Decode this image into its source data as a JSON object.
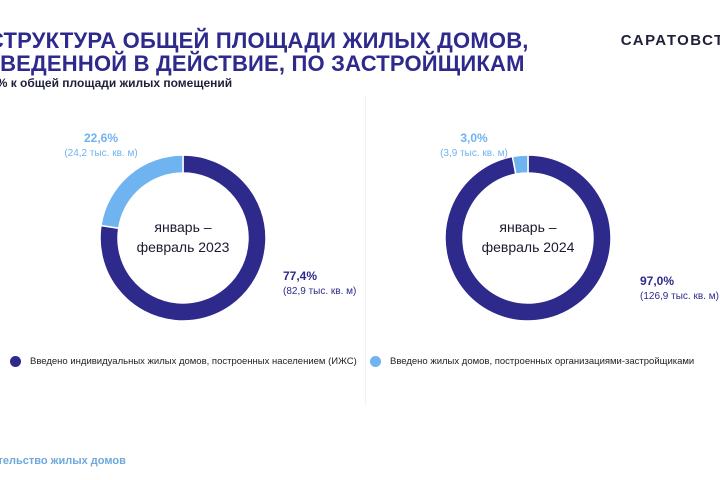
{
  "title_line1": "СТРУКТУРА ОБЩЕЙ ПЛОЩАДИ ЖИЛЫХ ДОМОВ,",
  "title_line2": "ВВЕДЕННОЙ В ДЕЙСТВИЕ, ПО ЗАСТРОЙЩИКАМ",
  "subtitle": "в % к общей площади жилых помещений",
  "brand": "САРАТОВСТАТ",
  "footer": "Строительство жилых домов",
  "colors": {
    "dark": "#2e2a8c",
    "light": "#6fb3f0"
  },
  "legend": [
    {
      "label": "Введено индивидуальных жилых домов,  построенных населением  (ИЖС)",
      "color": "#2e2a8c"
    },
    {
      "label": "Введено жилых домов, построенных организациями-застройщиками",
      "color": "#6fb3f0"
    }
  ],
  "chart_data": [
    {
      "type": "pie",
      "center_label": [
        "январь –",
        "февраль 2023"
      ],
      "slices": [
        {
          "value": 77.4,
          "label": "77,4%",
          "detail": "(82,9 тыс. кв. м)",
          "color": "#2e2a8c"
        },
        {
          "value": 22.6,
          "label": "22,6%",
          "detail": "(24,2 тыс. кв. м)",
          "color": "#6fb3f0"
        }
      ]
    },
    {
      "type": "pie",
      "center_label": [
        "январь –",
        "февраль 2024"
      ],
      "slices": [
        {
          "value": 97.0,
          "label": "97,0%",
          "detail": "(126,9 тыс. кв. м)",
          "color": "#2e2a8c"
        },
        {
          "value": 3.0,
          "label": "3,0%",
          "detail": "(3,9 тыс. кв. м)",
          "color": "#6fb3f0"
        }
      ]
    }
  ]
}
